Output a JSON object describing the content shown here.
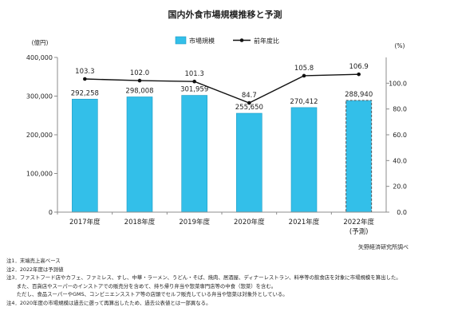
{
  "chart_data": {
    "type": "bar+line",
    "title": "国内外食市場規模推移と予測",
    "categories": [
      "2017年度",
      "2018年度",
      "2019年度",
      "2020年度",
      "2021年度",
      "2022年度"
    ],
    "category_sub": [
      "",
      "",
      "",
      "",
      "",
      "(予測)"
    ],
    "series": [
      {
        "name": "市場規模",
        "kind": "bar",
        "axis": "left",
        "values": [
          292258,
          298008,
          301959,
          255650,
          270412,
          288940
        ],
        "labels": [
          "292,258",
          "298,008",
          "301,959",
          "255,650",
          "270,412",
          "288,940"
        ],
        "forecast_index": 5
      },
      {
        "name": "前年度比",
        "kind": "line",
        "axis": "right",
        "values": [
          103.3,
          102.0,
          101.3,
          84.7,
          105.8,
          106.9
        ],
        "labels": [
          "103.3",
          "102.0",
          "101.3",
          "84.7",
          "105.8",
          "106.9"
        ]
      }
    ],
    "y_left": {
      "unit": "(億円)",
      "min": 0,
      "max": 400000,
      "step": 100000,
      "ticks": [
        "0",
        "100,000",
        "200,000",
        "300,000",
        "400,000"
      ]
    },
    "y_right": {
      "unit": "(%)",
      "min": 0,
      "max": 120,
      "step": 20,
      "ticks": [
        "0.0",
        "20.0",
        "40.0",
        "60.0",
        "80.0",
        "100.0"
      ]
    },
    "legend_placement": "top-center",
    "grid": false,
    "colors": {
      "bar": "#33bfe9",
      "bar_border": "#1f9cc4",
      "line": "#111111",
      "axis": "#8c8c8c"
    }
  },
  "source": "矢野経済研究所調べ",
  "notes": [
    "注1．末端売上高ベース",
    "注2．2022年度は予測値",
    "注3．ファストフード店やカフェ、ファミレス、すし、中華・ラーメン、うどん・そば、焼肉、居酒屋、ディナーレストラン、料亭等の飲食店を対象に市場規模を算出した。",
    "　　また、百貨店やスーパーのインストアでの販売分を含めて、持ち帰り弁当や惣菜専門店等の中食（惣菜）を含む。",
    "　　ただし、食品スーパーやGMS、コンビニエンスストア等の店頭でセルフ販売している弁当や惣菜は対象外としている。",
    "注4．2020年度の市場規模は過去に遡って再算出したため、過去公表値とは一部異なる。"
  ]
}
